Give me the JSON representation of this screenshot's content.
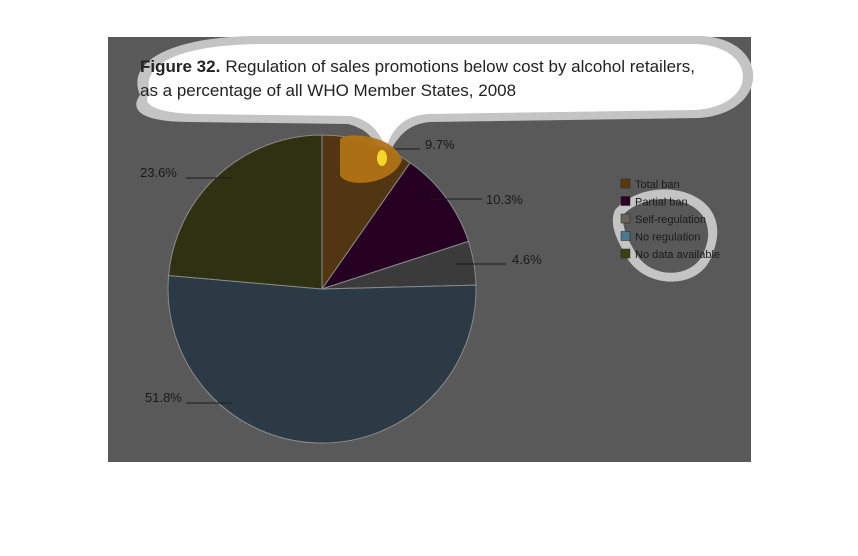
{
  "figure": {
    "label": "Figure 32.",
    "title_line1": "Regulation of sales promotions below cost by alcohol retailers,",
    "title_line2": "as a percentage of all WHO Member States, 2008"
  },
  "chart_data": {
    "type": "pie",
    "categories": [
      "Total ban",
      "Partial ban",
      "Self-regulation",
      "No regulation",
      "No data available"
    ],
    "values": [
      9.7,
      10.3,
      4.6,
      51.8,
      23.6
    ],
    "value_labels": [
      "9.7%",
      "10.3%",
      "4.6%",
      "51.8%",
      "23.6%"
    ],
    "legend_labels": [
      "Total ban",
      "Partial ban",
      "Self-regulation",
      "No regulation",
      "No data available"
    ],
    "colors": [
      "#523611",
      "#250022",
      "#3b3b3b",
      "#2c3a45",
      "#2e3112"
    ],
    "legend_colors": [
      "#5b3a10",
      "#2e0026",
      "#6b6358",
      "#4a7a92",
      "#3a4212"
    ],
    "legend_position": "right",
    "start_angle_deg": 0
  },
  "colors": {
    "panel_bg": "#595959",
    "bubble": "#ffffff",
    "bubble_halo": "#c8c8c8",
    "highlight_orange": "#b27315",
    "highlight_yellow": "#f2d72a"
  }
}
